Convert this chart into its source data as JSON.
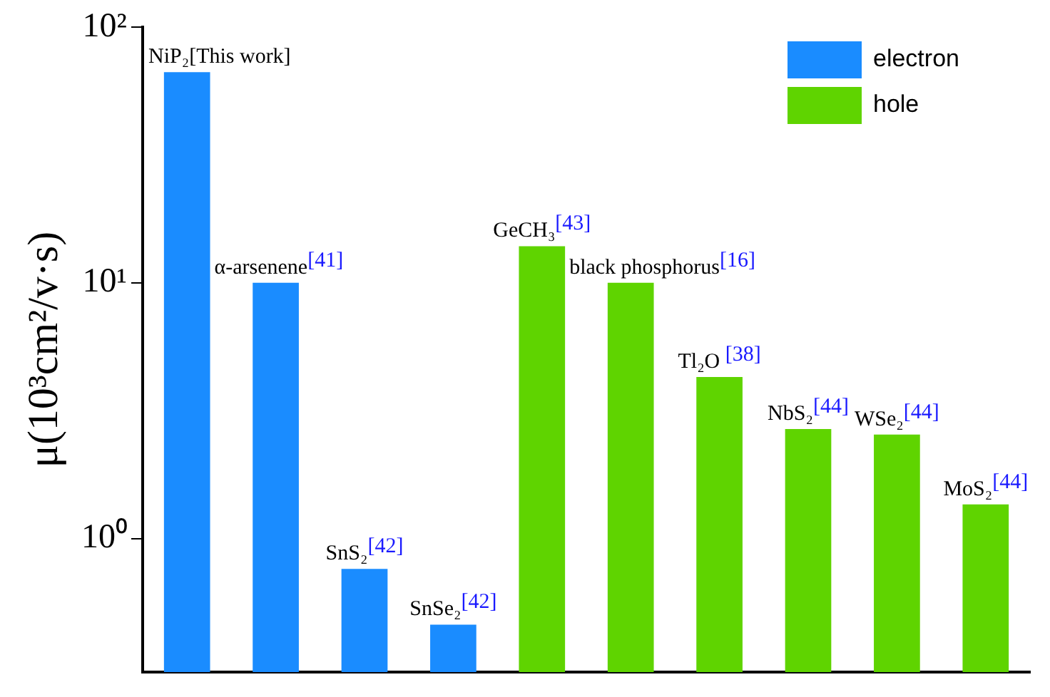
{
  "chart_data": {
    "type": "bar",
    "ylabel": "μ(10³cm²/v·s)",
    "categories": [
      "NiP₂[This work]",
      "α-arsenene[41]",
      "SnS₂[42]",
      "SnSe₂[42]",
      "GeCH₃[43]",
      "black phosphorus[16]",
      "Tl₂O [38]",
      "NbS₂[44]",
      "WSe₂[44]",
      "MoS₂[44]"
    ],
    "series": [
      {
        "name": "electron",
        "color": "#1a8cff",
        "values": [
          66.6,
          10,
          0.76,
          0.46,
          null,
          null,
          null,
          null,
          null,
          null
        ]
      },
      {
        "name": "hole",
        "color": "#5fd400",
        "values": [
          null,
          null,
          null,
          null,
          13.9,
          10,
          4.28,
          2.68,
          2.55,
          1.36
        ]
      }
    ],
    "log": "y",
    "ylim": [
      0.31,
      100
    ],
    "yticks": [
      {
        "value": 1,
        "label": "10⁰"
      },
      {
        "value": 10,
        "label": "10¹"
      },
      {
        "value": 100,
        "label": "10²"
      }
    ],
    "tick_labels": "y",
    "grid": false,
    "legend": "top right"
  }
}
